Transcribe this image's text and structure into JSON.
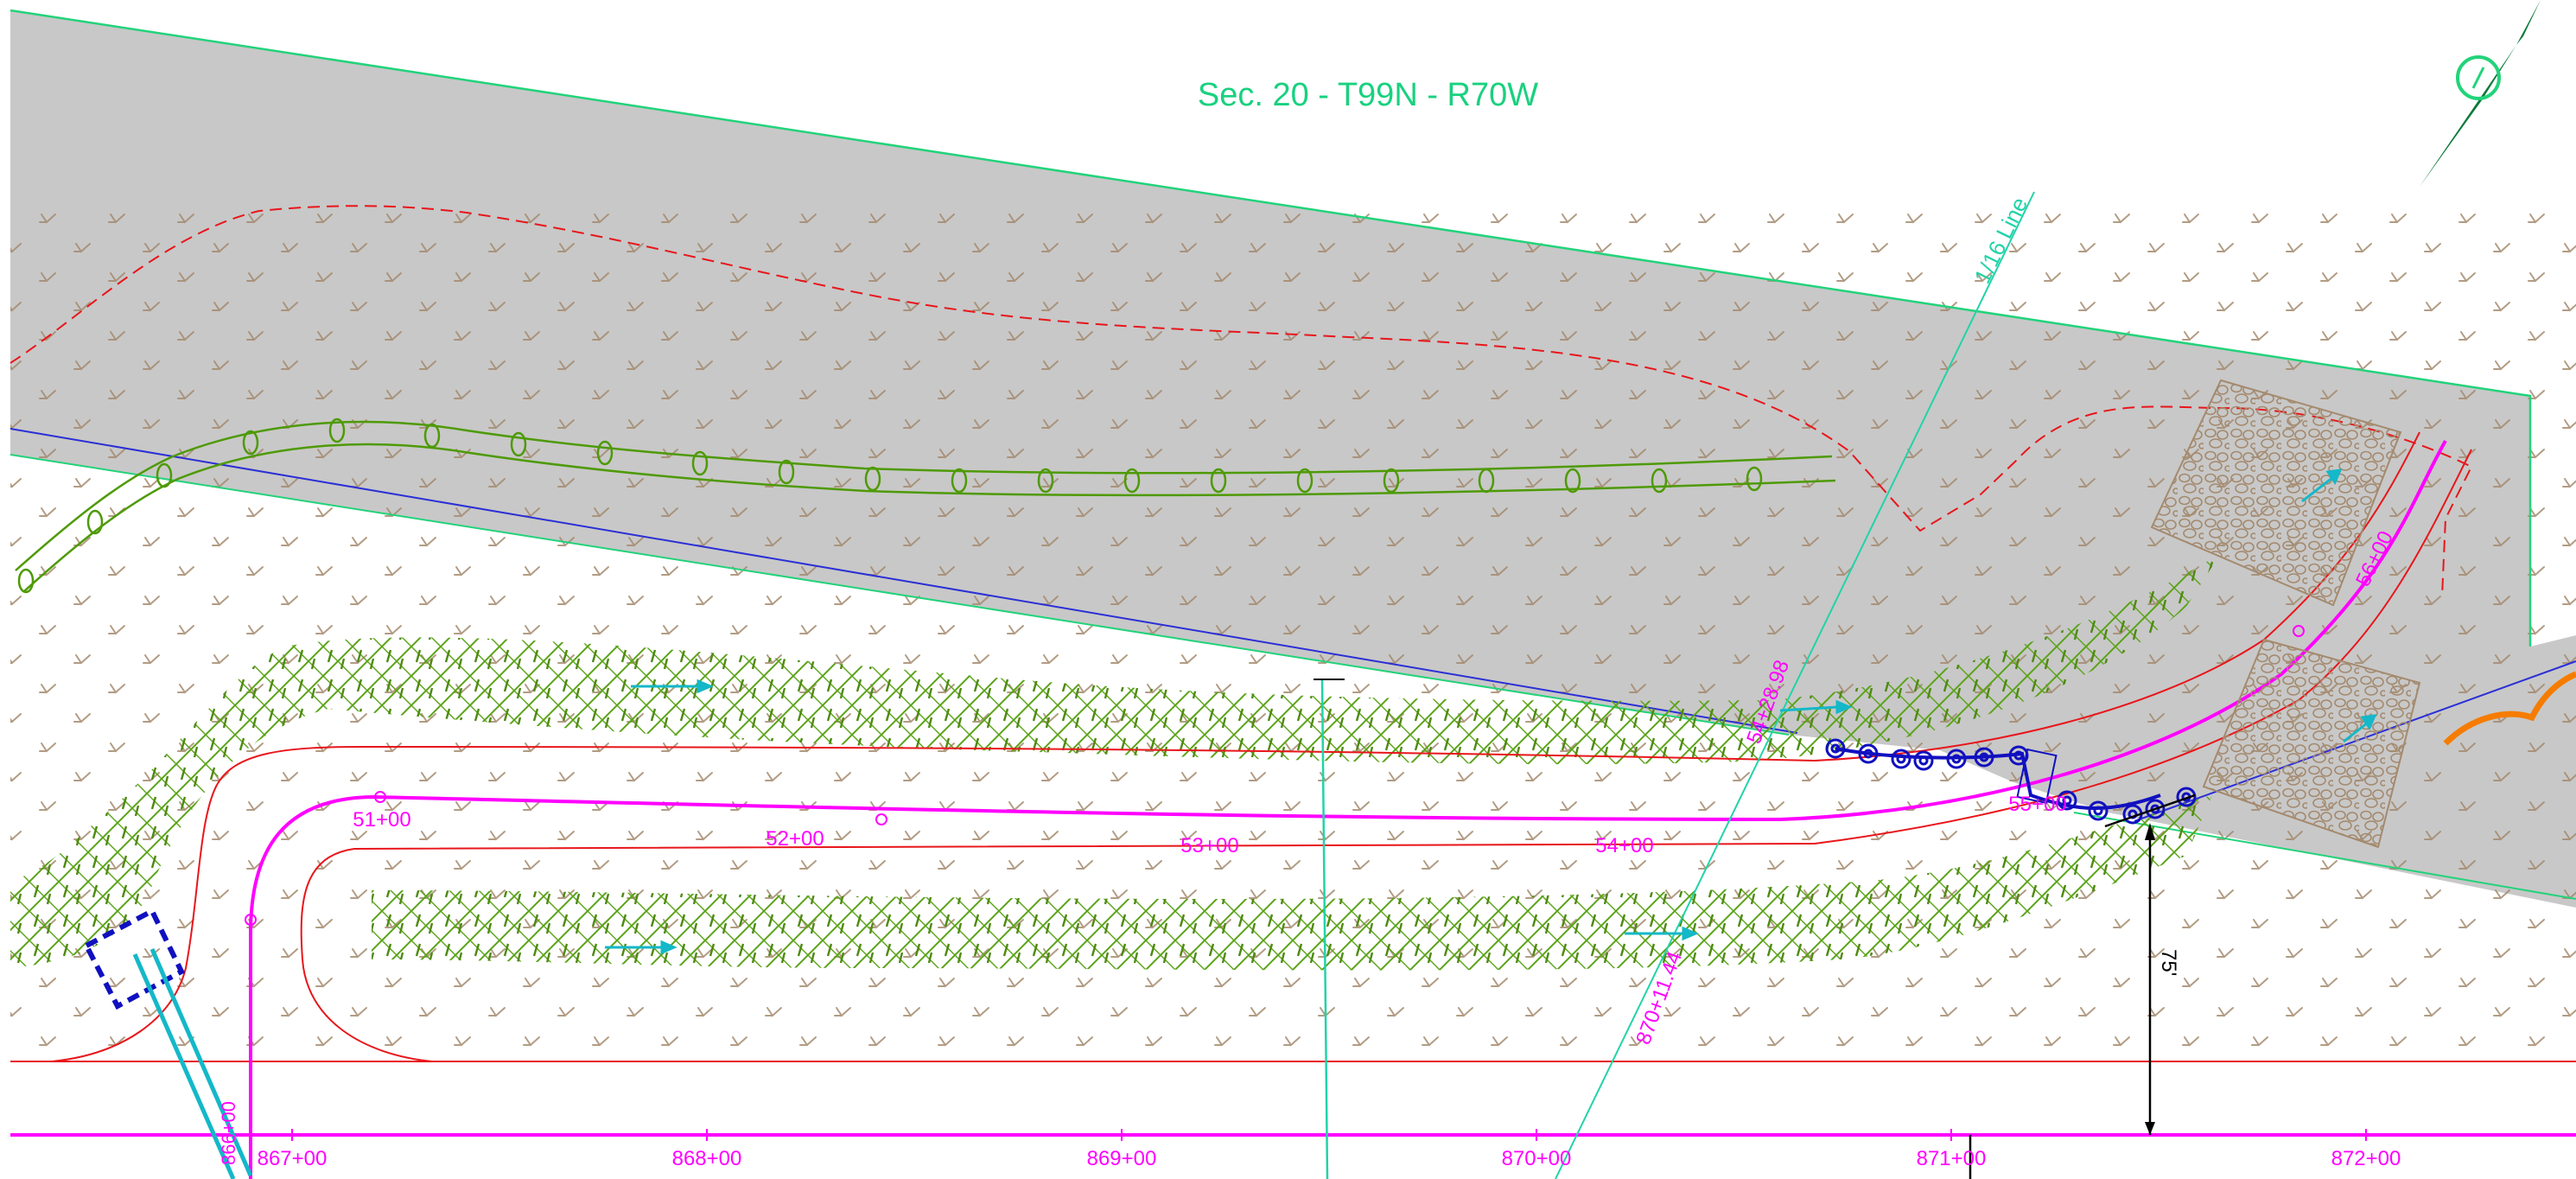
{
  "title": "Sec. 20 - T99N - R70W",
  "sixteenth_line_label": "1/16 Line",
  "bottom_stations": [
    "867+00",
    "868+00",
    "869+00",
    "870+00",
    "871+00",
    "872+00"
  ],
  "bottom_left_label": "866+00",
  "access_stations": [
    "51+00",
    "52+00",
    "53+00",
    "54+00",
    "55+00",
    "56+00"
  ],
  "tie_labels": {
    "upper": "54+28.98",
    "lower": "870+11.44"
  },
  "dimension_label": "75'",
  "colors": {
    "road_alignment": "#ff00ff",
    "road_edge": "#e8161b",
    "existing_disturbance": "#c8c8c8",
    "section_line": "#22d37a",
    "wattle": "#4e9a06",
    "seed_mix": "#5aa317",
    "flow_arrow": "#14b8c8",
    "culvert": "#1010c0",
    "riprap": "#a48a6e",
    "north_arrow": "#0a7a3a"
  },
  "icons": [
    "north-arrow-icon",
    "flow-arrow-icon",
    "grass-symbol-icon",
    "culvert-end-icon",
    "riprap-icon"
  ]
}
